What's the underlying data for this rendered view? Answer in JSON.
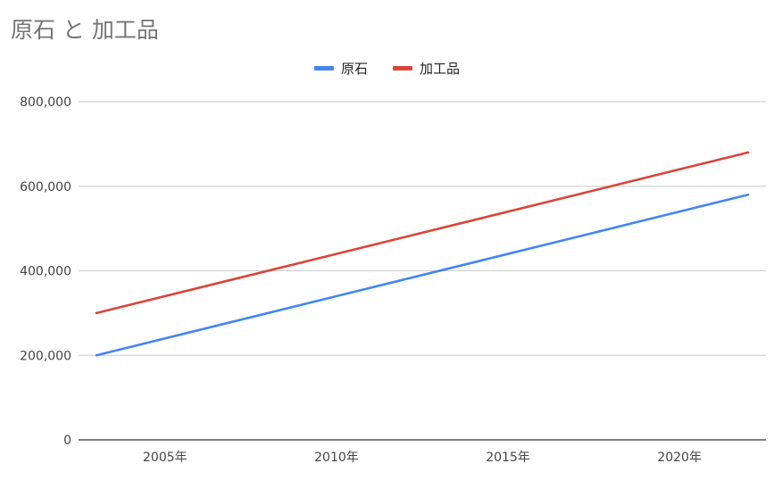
{
  "chart_data": {
    "type": "line",
    "title": "原石 と 加工品",
    "x": [
      2003,
      2022
    ],
    "xticks": [
      2005,
      2010,
      2015,
      2020
    ],
    "xtick_labels": [
      "2005年",
      "2010年",
      "2015年",
      "2020年"
    ],
    "xlim": [
      2003,
      2022
    ],
    "ylim": [
      0,
      800000
    ],
    "yticks": [
      0,
      200000,
      400000,
      600000,
      800000
    ],
    "ytick_labels": [
      "0",
      "200,000",
      "400,000",
      "600,000",
      "800,000"
    ],
    "series": [
      {
        "name": "原石",
        "color": "#4285f4",
        "values": [
          200000,
          580000
        ]
      },
      {
        "name": "加工品",
        "color": "#db4437",
        "values": [
          300000,
          680000
        ]
      }
    ],
    "grid": true,
    "legend_position": "top"
  }
}
